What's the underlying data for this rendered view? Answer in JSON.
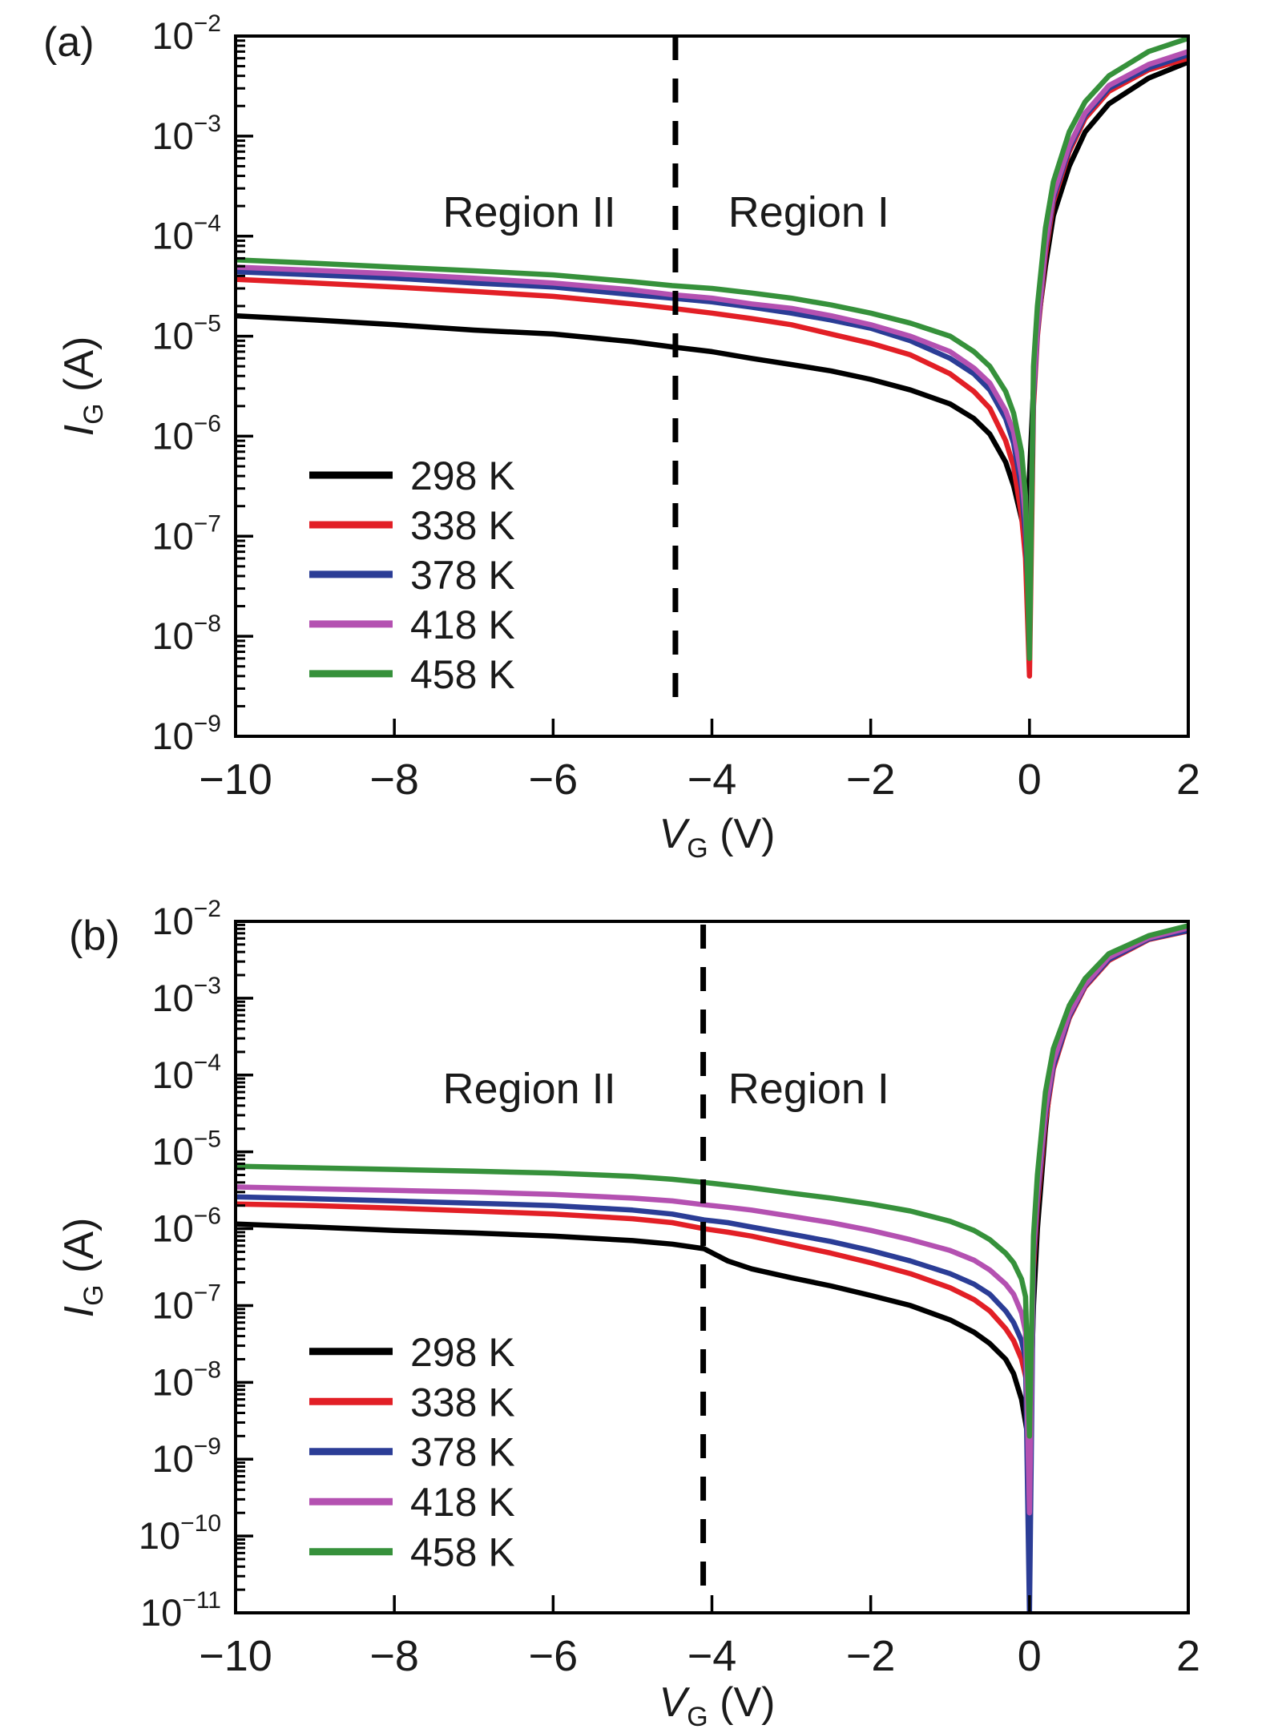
{
  "figure": {
    "background": "#ffffff",
    "axis_color": "#000000",
    "text_color": "#1a1a1a"
  },
  "chart_data": [
    {
      "type": "line",
      "panel_label": "(a)",
      "xlabel": {
        "var": "V",
        "sub": "G",
        "unit": " (V)"
      },
      "ylabel": {
        "var": "I",
        "sub": "G",
        "unit": " (A)"
      },
      "x_axis": {
        "min": -10,
        "max": 2,
        "ticks": [
          -10,
          -8,
          -6,
          -4,
          -2,
          0,
          2
        ]
      },
      "y_axis": {
        "scale": "log",
        "max_exp": -2,
        "min_exp": -9
      },
      "boundary_line_x": -4.46,
      "regions": [
        {
          "label": "Region II",
          "x_center": -6.3
        },
        {
          "label": "Region I",
          "x_center": -2.78
        }
      ],
      "x": [
        -10,
        -9,
        -8,
        -7,
        -6,
        -5,
        -4.5,
        -4,
        -3.5,
        -3,
        -2.5,
        -2,
        -1.5,
        -1,
        -0.7,
        -0.5,
        -0.3,
        -0.2,
        -0.1,
        -0.05,
        0,
        0.05,
        0.1,
        0.2,
        0.3,
        0.5,
        0.7,
        1,
        1.5,
        2
      ],
      "series": [
        {
          "name": "298 K",
          "color": "#000000",
          "y": [
            1.6e-05,
            1.45e-05,
            1.3e-05,
            1.15e-05,
            1.05e-05,
            8.8e-06,
            7.8e-06,
            7e-06,
            6e-06,
            5.2e-06,
            4.5e-06,
            3.7e-06,
            2.9e-06,
            2.1e-06,
            1.5e-06,
            1.05e-06,
            5.5e-07,
            3.2e-07,
            1.5e-07,
            1e-07,
            4e-07,
            3e-06,
            1.2e-05,
            5e-05,
            0.00016,
            0.0005,
            0.0011,
            0.0021,
            0.0038,
            0.0055
          ]
        },
        {
          "name": "338 K",
          "color": "#e21f26",
          "y": [
            3.7e-05,
            3.4e-05,
            3.1e-05,
            2.8e-05,
            2.5e-05,
            2.1e-05,
            1.9e-05,
            1.7e-05,
            1.5e-05,
            1.3e-05,
            1.05e-05,
            8.5e-06,
            6.5e-06,
            4.2e-06,
            2.8e-06,
            1.9e-06,
            9e-07,
            5e-07,
            1.6e-07,
            6e-08,
            4e-09,
            2e-06,
            1e-05,
            6.5e-05,
            0.00022,
            0.0007,
            0.0015,
            0.0028,
            0.0046,
            0.006
          ]
        },
        {
          "name": "378 K",
          "color": "#2b3d96",
          "y": [
            4.4e-05,
            4.1e-05,
            3.8e-05,
            3.4e-05,
            3.1e-05,
            2.6e-05,
            2.4e-05,
            2.2e-05,
            1.95e-05,
            1.7e-05,
            1.45e-05,
            1.2e-05,
            9e-06,
            6e-06,
            4.2e-06,
            2.9e-06,
            1.5e-06,
            8.5e-07,
            3e-07,
            1e-07,
            1.5e-08,
            2.5e-06,
            1.1e-05,
            7.5e-05,
            0.00024,
            0.00075,
            0.0016,
            0.003,
            0.0048,
            0.0065
          ]
        },
        {
          "name": "418 K",
          "color": "#b451b1",
          "y": [
            4.9e-05,
            4.55e-05,
            4.2e-05,
            3.8e-05,
            3.4e-05,
            2.9e-05,
            2.6e-05,
            2.4e-05,
            2.1e-05,
            1.9e-05,
            1.6e-05,
            1.3e-05,
            1e-05,
            7e-06,
            4.8e-06,
            3.4e-06,
            1.8e-06,
            1.1e-06,
            4e-07,
            1.5e-07,
            2e-08,
            3e-06,
            1.2e-05,
            8e-05,
            0.00026,
            0.0008,
            0.0017,
            0.0032,
            0.0052,
            0.007
          ]
        },
        {
          "name": "458 K",
          "color": "#36913b",
          "y": [
            5.8e-05,
            5.35e-05,
            4.9e-05,
            4.5e-05,
            4.1e-05,
            3.5e-05,
            3.2e-05,
            3e-05,
            2.7e-05,
            2.4e-05,
            2.05e-05,
            1.7e-05,
            1.35e-05,
            1e-05,
            7e-06,
            5e-06,
            2.8e-06,
            1.7e-06,
            7e-07,
            2.5e-07,
            6e-09,
            5e-06,
            2e-05,
            0.00012,
            0.00035,
            0.0011,
            0.0022,
            0.004,
            0.007,
            0.0095
          ]
        }
      ]
    },
    {
      "type": "line",
      "panel_label": "(b)",
      "xlabel": {
        "var": "V",
        "sub": "G",
        "unit": " (V)"
      },
      "ylabel": {
        "var": "I",
        "sub": "G",
        "unit": " (A)"
      },
      "x_axis": {
        "min": -10,
        "max": 2,
        "ticks": [
          -10,
          -8,
          -6,
          -4,
          -2,
          0,
          2
        ]
      },
      "y_axis": {
        "scale": "log",
        "max_exp": -2,
        "min_exp": -11
      },
      "boundary_line_x": -4.11,
      "regions": [
        {
          "label": "Region II",
          "x_center": -6.3
        },
        {
          "label": "Region I",
          "x_center": -2.78
        }
      ],
      "x": [
        -10,
        -9,
        -8,
        -7,
        -6,
        -5,
        -4.5,
        -4.1,
        -3.8,
        -3.5,
        -3,
        -2.5,
        -2,
        -1.5,
        -1,
        -0.7,
        -0.5,
        -0.3,
        -0.2,
        -0.1,
        -0.05,
        0,
        0.05,
        0.1,
        0.2,
        0.3,
        0.5,
        0.7,
        1,
        1.5,
        2
      ],
      "series": [
        {
          "name": "298 K",
          "color": "#000000",
          "y": [
            1.15e-06,
            1.05e-06,
            9.5e-07,
            8.8e-07,
            8e-07,
            7e-07,
            6.3e-07,
            5.5e-07,
            3.8e-07,
            3e-07,
            2.3e-07,
            1.8e-07,
            1.35e-07,
            1e-07,
            6.5e-08,
            4.5e-08,
            3.2e-08,
            2e-08,
            1.3e-08,
            6e-09,
            3e-09,
            1.5e-09,
            1e-07,
            1e-06,
            2e-05,
            0.0002,
            0.0007,
            0.0016,
            0.0033,
            0.006,
            0.0078
          ]
        },
        {
          "name": "338 K",
          "color": "#e21f26",
          "y": [
            2.1e-06,
            2e-06,
            1.85e-06,
            1.7e-06,
            1.55e-06,
            1.35e-06,
            1.2e-06,
            1e-06,
            9e-07,
            8e-07,
            6.2e-07,
            4.8e-07,
            3.6e-07,
            2.6e-07,
            1.7e-07,
            1.2e-07,
            8.5e-08,
            5e-08,
            3.5e-08,
            2e-08,
            1.2e-08,
            6e-09,
            3e-07,
            2e-06,
            2.5e-05,
            0.00012,
            0.00055,
            0.0014,
            0.0031,
            0.0058,
            0.0075
          ]
        },
        {
          "name": "378 K",
          "color": "#2b3d96",
          "y": [
            2.6e-06,
            2.45e-06,
            2.3e-06,
            2.15e-06,
            2e-06,
            1.75e-06,
            1.55e-06,
            1.3e-06,
            1.2e-06,
            1.05e-06,
            8.5e-07,
            6.8e-07,
            5.2e-07,
            3.8e-07,
            2.6e-07,
            1.9e-07,
            1.4e-07,
            8.5e-08,
            6e-08,
            3.5e-08,
            2e-08,
            1e-11,
            4e-07,
            2.5e-06,
            3e-05,
            0.00013,
            0.00058,
            0.00145,
            0.0032,
            0.0059,
            0.0076
          ]
        },
        {
          "name": "418 K",
          "color": "#b451b1",
          "y": [
            3.5e-06,
            3.3e-06,
            3.15e-06,
            3e-06,
            2.8e-06,
            2.5e-06,
            2.3e-06,
            2.05e-06,
            1.9e-06,
            1.75e-06,
            1.45e-06,
            1.2e-06,
            9.5e-07,
            7.2e-07,
            5.2e-07,
            3.9e-07,
            2.9e-07,
            1.9e-07,
            1.4e-07,
            8e-08,
            4.5e-08,
            2e-10,
            5e-07,
            3e-06,
            3.5e-05,
            0.00015,
            0.00062,
            0.0015,
            0.0034,
            0.0061,
            0.0082
          ]
        },
        {
          "name": "458 K",
          "color": "#36913b",
          "y": [
            6.5e-06,
            6.2e-06,
            5.9e-06,
            5.6e-06,
            5.3e-06,
            4.8e-06,
            4.4e-06,
            4e-06,
            3.7e-06,
            3.4e-06,
            2.9e-06,
            2.5e-06,
            2.1e-06,
            1.7e-06,
            1.25e-06,
            9.5e-07,
            7.2e-07,
            4.8e-07,
            3.6e-07,
            2.2e-07,
            1.3e-07,
            2e-09,
            8e-07,
            5e-06,
            6e-05,
            0.00022,
            0.0008,
            0.0018,
            0.0038,
            0.0065,
            0.0088
          ]
        }
      ]
    }
  ]
}
